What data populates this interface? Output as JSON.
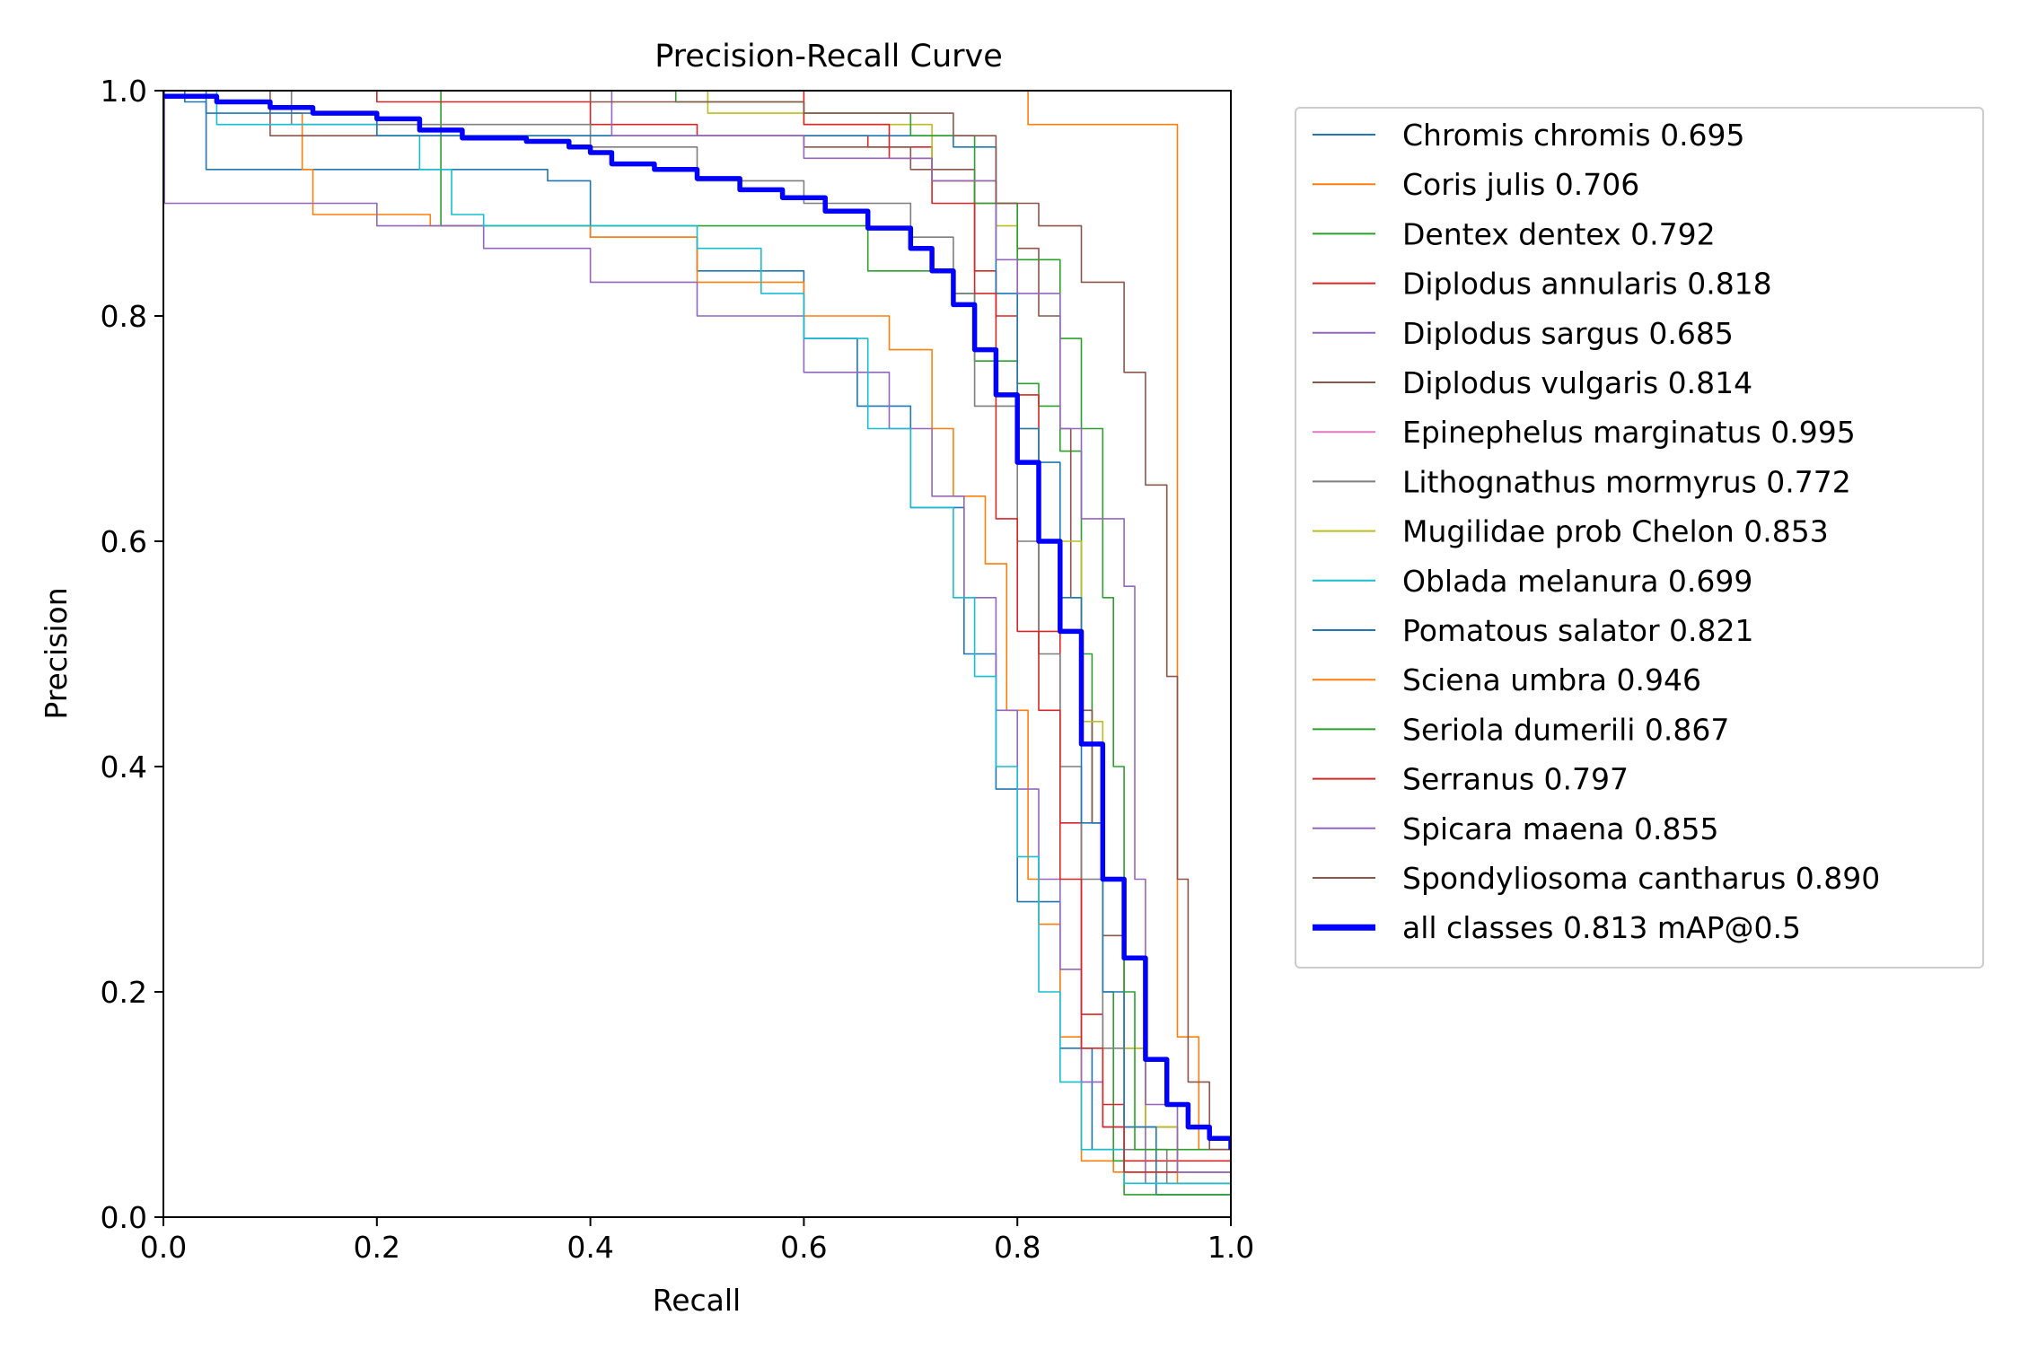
{
  "chart_data": {
    "type": "line",
    "title": "Precision-Recall Curve",
    "xlabel": "Recall",
    "ylabel": "Precision",
    "xlim": [
      0,
      1
    ],
    "ylim": [
      0,
      1
    ],
    "xticks": [
      "0.0",
      "0.2",
      "0.4",
      "0.6",
      "0.8",
      "1.0"
    ],
    "yticks": [
      "0.0",
      "0.2",
      "0.4",
      "0.6",
      "0.8",
      "1.0"
    ],
    "grid": false,
    "legend_position": "outside-right",
    "series": [
      {
        "name": "Chromis chromis 0.695",
        "color": "#1f77b4",
        "width": 1.6,
        "points": [
          [
            0,
            1
          ],
          [
            0.02,
            0.99
          ],
          [
            0.04,
            0.93
          ],
          [
            0.2,
            0.93
          ],
          [
            0.36,
            0.92
          ],
          [
            0.4,
            0.87
          ],
          [
            0.5,
            0.84
          ],
          [
            0.6,
            0.78
          ],
          [
            0.65,
            0.72
          ],
          [
            0.7,
            0.63
          ],
          [
            0.75,
            0.5
          ],
          [
            0.78,
            0.38
          ],
          [
            0.8,
            0.28
          ],
          [
            0.84,
            0.15
          ],
          [
            0.87,
            0.06
          ],
          [
            0.9,
            0.04
          ],
          [
            0.93,
            0.02
          ],
          [
            1,
            0
          ]
        ]
      },
      {
        "name": "Coris julis 0.706",
        "color": "#ff7f0e",
        "width": 1.6,
        "points": [
          [
            0,
            1
          ],
          [
            0.12,
            0.98
          ],
          [
            0.13,
            0.93
          ],
          [
            0.14,
            0.89
          ],
          [
            0.25,
            0.88
          ],
          [
            0.4,
            0.87
          ],
          [
            0.5,
            0.83
          ],
          [
            0.6,
            0.8
          ],
          [
            0.68,
            0.77
          ],
          [
            0.72,
            0.7
          ],
          [
            0.74,
            0.64
          ],
          [
            0.77,
            0.58
          ],
          [
            0.79,
            0.45
          ],
          [
            0.81,
            0.3
          ],
          [
            0.82,
            0.26
          ],
          [
            0.84,
            0.16
          ],
          [
            0.86,
            0.05
          ],
          [
            0.89,
            0.04
          ],
          [
            0.95,
            0.03
          ],
          [
            1,
            0
          ]
        ]
      },
      {
        "name": "Dentex dentex 0.792",
        "color": "#2ca02c",
        "width": 1.6,
        "points": [
          [
            0,
            1
          ],
          [
            0.26,
            0.98
          ],
          [
            0.26,
            0.88
          ],
          [
            0.5,
            0.88
          ],
          [
            0.64,
            0.88
          ],
          [
            0.66,
            0.84
          ],
          [
            0.74,
            0.82
          ],
          [
            0.76,
            0.76
          ],
          [
            0.8,
            0.74
          ],
          [
            0.82,
            0.72
          ],
          [
            0.84,
            0.68
          ],
          [
            0.86,
            0.5
          ],
          [
            0.87,
            0.35
          ],
          [
            0.88,
            0.2
          ],
          [
            0.89,
            0.05
          ],
          [
            0.9,
            0.02
          ],
          [
            1,
            0
          ]
        ]
      },
      {
        "name": "Diplodus annularis 0.818",
        "color": "#d62728",
        "width": 1.6,
        "points": [
          [
            0,
            1
          ],
          [
            0.2,
            0.99
          ],
          [
            0.4,
            0.97
          ],
          [
            0.5,
            0.96
          ],
          [
            0.66,
            0.95
          ],
          [
            0.72,
            0.92
          ],
          [
            0.76,
            0.84
          ],
          [
            0.78,
            0.8
          ],
          [
            0.8,
            0.73
          ],
          [
            0.82,
            0.52
          ],
          [
            0.84,
            0.35
          ],
          [
            0.86,
            0.18
          ],
          [
            0.88,
            0.1
          ],
          [
            0.9,
            0.05
          ],
          [
            1,
            0
          ]
        ]
      },
      {
        "name": "Diplodus sargus 0.685",
        "color": "#9467bd",
        "width": 1.6,
        "points": [
          [
            0,
            1
          ],
          [
            0.001,
            0.9
          ],
          [
            0.16,
            0.9
          ],
          [
            0.2,
            0.88
          ],
          [
            0.3,
            0.86
          ],
          [
            0.4,
            0.83
          ],
          [
            0.5,
            0.8
          ],
          [
            0.6,
            0.75
          ],
          [
            0.68,
            0.7
          ],
          [
            0.72,
            0.64
          ],
          [
            0.75,
            0.55
          ],
          [
            0.78,
            0.45
          ],
          [
            0.8,
            0.38
          ],
          [
            0.82,
            0.3
          ],
          [
            0.84,
            0.22
          ],
          [
            0.86,
            0.12
          ],
          [
            0.88,
            0.08
          ],
          [
            0.92,
            0.03
          ],
          [
            1,
            0
          ]
        ]
      },
      {
        "name": "Diplodus vulgaris 0.814",
        "color": "#8c564b",
        "width": 1.6,
        "points": [
          [
            0,
            1
          ],
          [
            0.1,
            0.96
          ],
          [
            0.3,
            0.96
          ],
          [
            0.5,
            0.96
          ],
          [
            0.6,
            0.95
          ],
          [
            0.7,
            0.93
          ],
          [
            0.76,
            0.9
          ],
          [
            0.8,
            0.86
          ],
          [
            0.82,
            0.8
          ],
          [
            0.84,
            0.7
          ],
          [
            0.85,
            0.55
          ],
          [
            0.86,
            0.45
          ],
          [
            0.87,
            0.35
          ],
          [
            0.88,
            0.25
          ],
          [
            0.9,
            0.15
          ],
          [
            0.92,
            0.08
          ],
          [
            0.95,
            0.04
          ],
          [
            1,
            0
          ]
        ]
      },
      {
        "name": "Epinephelus marginatus 0.995",
        "color": "#e377c2",
        "width": 1.6,
        "points": [
          [
            0,
            1
          ],
          [
            0.995,
            1
          ],
          [
            1,
            0.99
          ],
          [
            1,
            0
          ]
        ]
      },
      {
        "name": "Lithognathus mormyrus 0.772",
        "color": "#7f7f7f",
        "width": 1.6,
        "points": [
          [
            0,
            1
          ],
          [
            0.12,
            0.97
          ],
          [
            0.3,
            0.97
          ],
          [
            0.4,
            0.95
          ],
          [
            0.5,
            0.92
          ],
          [
            0.6,
            0.9
          ],
          [
            0.7,
            0.87
          ],
          [
            0.74,
            0.82
          ],
          [
            0.76,
            0.72
          ],
          [
            0.8,
            0.6
          ],
          [
            0.82,
            0.5
          ],
          [
            0.84,
            0.4
          ],
          [
            0.86,
            0.3
          ],
          [
            0.88,
            0.15
          ],
          [
            0.9,
            0.06
          ],
          [
            0.94,
            0.03
          ],
          [
            1,
            0
          ]
        ]
      },
      {
        "name": "Mugilidae prob Chelon 0.853",
        "color": "#bcbd22",
        "width": 1.6,
        "points": [
          [
            0,
            1
          ],
          [
            0.5,
            1
          ],
          [
            0.51,
            0.98
          ],
          [
            0.58,
            0.98
          ],
          [
            0.6,
            0.97
          ],
          [
            0.7,
            0.97
          ],
          [
            0.72,
            0.92
          ],
          [
            0.78,
            0.88
          ],
          [
            0.8,
            0.7
          ],
          [
            0.82,
            0.6
          ],
          [
            0.86,
            0.44
          ],
          [
            0.88,
            0.3
          ],
          [
            0.9,
            0.15
          ],
          [
            0.92,
            0.08
          ],
          [
            0.95,
            0.04
          ],
          [
            1,
            0
          ]
        ]
      },
      {
        "name": "Oblada melanura 0.699",
        "color": "#17becf",
        "width": 1.6,
        "points": [
          [
            0,
            1
          ],
          [
            0.05,
            0.97
          ],
          [
            0.2,
            0.96
          ],
          [
            0.24,
            0.93
          ],
          [
            0.27,
            0.89
          ],
          [
            0.3,
            0.88
          ],
          [
            0.4,
            0.88
          ],
          [
            0.5,
            0.86
          ],
          [
            0.56,
            0.82
          ],
          [
            0.6,
            0.78
          ],
          [
            0.66,
            0.7
          ],
          [
            0.7,
            0.63
          ],
          [
            0.74,
            0.55
          ],
          [
            0.76,
            0.48
          ],
          [
            0.78,
            0.4
          ],
          [
            0.8,
            0.32
          ],
          [
            0.82,
            0.2
          ],
          [
            0.84,
            0.12
          ],
          [
            0.86,
            0.06
          ],
          [
            0.9,
            0.03
          ],
          [
            1,
            0
          ]
        ]
      },
      {
        "name": "Pomatous salator 0.821",
        "color": "#1f77b4",
        "width": 1.6,
        "points": [
          [
            0,
            1
          ],
          [
            0.04,
            0.98
          ],
          [
            0.12,
            0.98
          ],
          [
            0.2,
            0.96
          ],
          [
            0.4,
            0.96
          ],
          [
            0.6,
            0.96
          ],
          [
            0.74,
            0.95
          ],
          [
            0.78,
            0.82
          ],
          [
            0.8,
            0.7
          ],
          [
            0.82,
            0.67
          ],
          [
            0.84,
            0.55
          ],
          [
            0.86,
            0.35
          ],
          [
            0.88,
            0.2
          ],
          [
            0.9,
            0.08
          ],
          [
            0.93,
            0.04
          ],
          [
            1,
            0
          ]
        ]
      },
      {
        "name": "Sciena umbra 0.946",
        "color": "#ff7f0e",
        "width": 1.6,
        "points": [
          [
            0,
            1
          ],
          [
            0.81,
            1
          ],
          [
            0.81,
            0.97
          ],
          [
            0.94,
            0.97
          ],
          [
            0.95,
            0.5
          ],
          [
            0.95,
            0.16
          ],
          [
            0.97,
            0.16
          ],
          [
            0.97,
            0.06
          ],
          [
            1,
            0
          ]
        ]
      },
      {
        "name": "Seriola dumerili 0.867",
        "color": "#2ca02c",
        "width": 1.6,
        "points": [
          [
            0,
            1
          ],
          [
            0.3,
            1
          ],
          [
            0.48,
            0.99
          ],
          [
            0.6,
            0.98
          ],
          [
            0.7,
            0.96
          ],
          [
            0.76,
            0.9
          ],
          [
            0.8,
            0.85
          ],
          [
            0.84,
            0.78
          ],
          [
            0.86,
            0.7
          ],
          [
            0.88,
            0.55
          ],
          [
            0.89,
            0.4
          ],
          [
            0.9,
            0.2
          ],
          [
            0.91,
            0.06
          ],
          [
            1,
            0
          ]
        ]
      },
      {
        "name": "Serranus 0.797",
        "color": "#d62728",
        "width": 1.6,
        "points": [
          [
            0,
            1
          ],
          [
            0.2,
            1
          ],
          [
            0.5,
            1
          ],
          [
            0.6,
            0.97
          ],
          [
            0.68,
            0.94
          ],
          [
            0.72,
            0.9
          ],
          [
            0.76,
            0.82
          ],
          [
            0.78,
            0.62
          ],
          [
            0.8,
            0.52
          ],
          [
            0.82,
            0.45
          ],
          [
            0.84,
            0.3
          ],
          [
            0.86,
            0.15
          ],
          [
            0.88,
            0.08
          ],
          [
            0.9,
            0.04
          ],
          [
            1,
            0
          ]
        ]
      },
      {
        "name": "Spicara maena 0.855",
        "color": "#9467bd",
        "width": 1.6,
        "points": [
          [
            0,
            1
          ],
          [
            0.4,
            1
          ],
          [
            0.42,
            0.96
          ],
          [
            0.6,
            0.94
          ],
          [
            0.72,
            0.92
          ],
          [
            0.78,
            0.85
          ],
          [
            0.8,
            0.82
          ],
          [
            0.84,
            0.7
          ],
          [
            0.86,
            0.62
          ],
          [
            0.9,
            0.56
          ],
          [
            0.91,
            0.3
          ],
          [
            0.92,
            0.1
          ],
          [
            0.95,
            0.04
          ],
          [
            1,
            0
          ]
        ]
      },
      {
        "name": "Spondyliosoma cantharus 0.890",
        "color": "#8c564b",
        "width": 1.6,
        "points": [
          [
            0,
            1
          ],
          [
            0.2,
            1
          ],
          [
            0.4,
            0.99
          ],
          [
            0.6,
            0.98
          ],
          [
            0.74,
            0.96
          ],
          [
            0.78,
            0.9
          ],
          [
            0.82,
            0.88
          ],
          [
            0.86,
            0.83
          ],
          [
            0.9,
            0.75
          ],
          [
            0.92,
            0.65
          ],
          [
            0.94,
            0.48
          ],
          [
            0.95,
            0.3
          ],
          [
            0.96,
            0.12
          ],
          [
            0.98,
            0.06
          ],
          [
            1,
            0
          ]
        ]
      },
      {
        "name": "all classes 0.813 mAP@0.5",
        "color": "#0000ff",
        "width": 5.5,
        "points": [
          [
            0,
            0.995
          ],
          [
            0.05,
            0.99
          ],
          [
            0.1,
            0.985
          ],
          [
            0.14,
            0.98
          ],
          [
            0.2,
            0.975
          ],
          [
            0.24,
            0.965
          ],
          [
            0.28,
            0.958
          ],
          [
            0.34,
            0.955
          ],
          [
            0.38,
            0.95
          ],
          [
            0.4,
            0.945
          ],
          [
            0.42,
            0.935
          ],
          [
            0.46,
            0.93
          ],
          [
            0.5,
            0.922
          ],
          [
            0.54,
            0.912
          ],
          [
            0.58,
            0.905
          ],
          [
            0.62,
            0.893
          ],
          [
            0.66,
            0.878
          ],
          [
            0.7,
            0.86
          ],
          [
            0.72,
            0.84
          ],
          [
            0.74,
            0.81
          ],
          [
            0.76,
            0.77
          ],
          [
            0.78,
            0.73
          ],
          [
            0.8,
            0.67
          ],
          [
            0.82,
            0.6
          ],
          [
            0.84,
            0.52
          ],
          [
            0.86,
            0.42
          ],
          [
            0.88,
            0.3
          ],
          [
            0.9,
            0.23
          ],
          [
            0.92,
            0.14
          ],
          [
            0.94,
            0.1
          ],
          [
            0.96,
            0.08
          ],
          [
            0.98,
            0.07
          ],
          [
            1,
            0.06
          ]
        ]
      }
    ]
  }
}
